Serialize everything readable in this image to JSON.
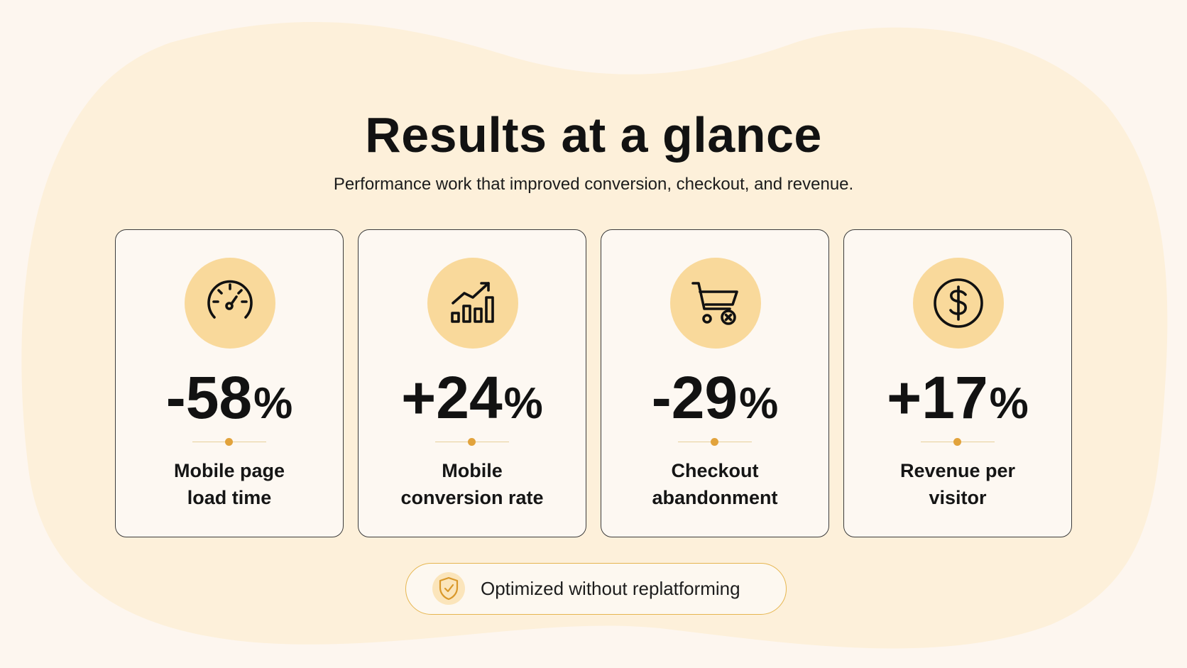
{
  "header": {
    "title": "Results at a glance",
    "subtitle": "Performance work that improved conversion, checkout, and revenue."
  },
  "cards": [
    {
      "icon": "speedometer-icon",
      "value": "-58",
      "unit": "%",
      "label_line1": "Mobile page",
      "label_line2": "load time"
    },
    {
      "icon": "growth-chart-icon",
      "value": "+24",
      "unit": "%",
      "label_line1": "Mobile",
      "label_line2": "conversion rate"
    },
    {
      "icon": "cart-remove-icon",
      "value": "-29",
      "unit": "%",
      "label_line1": "Checkout",
      "label_line2": "abandonment"
    },
    {
      "icon": "dollar-icon",
      "value": "+17",
      "unit": "%",
      "label_line1": "Revenue per",
      "label_line2": "visitor"
    }
  ],
  "badge": {
    "icon": "shield-check-icon",
    "text": "Optimized without replatforming"
  },
  "colors": {
    "background": "#fdf6ef",
    "blob": "#fdf0da",
    "icon_circle": "#f9d99b",
    "accent": "#e2a33c",
    "text": "#121212"
  }
}
